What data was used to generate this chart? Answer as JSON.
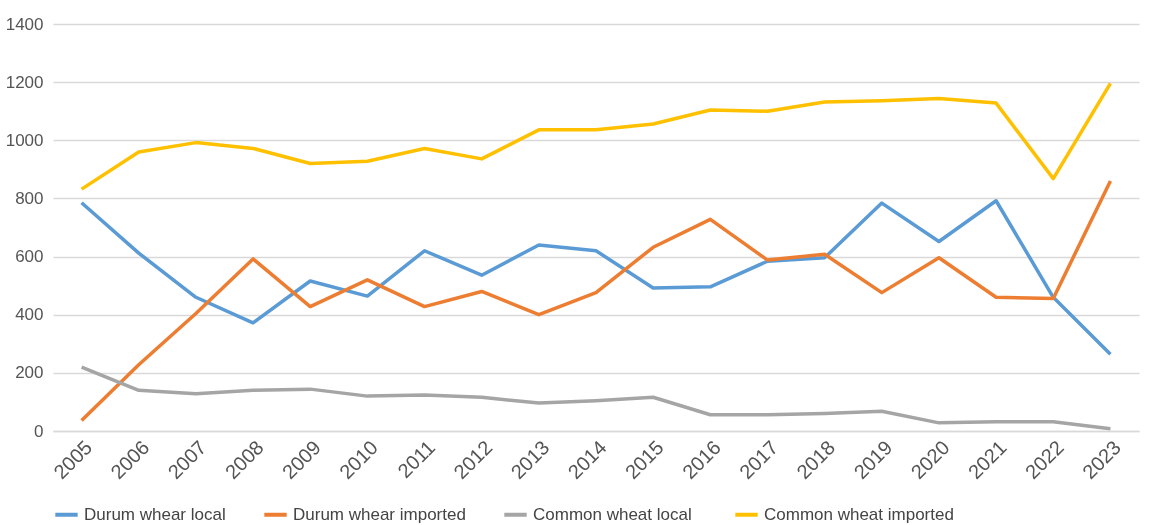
{
  "chart_data": {
    "type": "line",
    "categories": [
      "2005",
      "2006",
      "2007",
      "2008",
      "2009",
      "2010",
      "2011",
      "2012",
      "2013",
      "2014",
      "2015",
      "2016",
      "2017",
      "2018",
      "2019",
      "2020",
      "2021",
      "2022",
      "2023"
    ],
    "series": [
      {
        "name": "Durum whear local",
        "color": "#5b9bd5",
        "values": [
          785,
          612,
          460,
          372,
          516,
          464,
          620,
          536,
          640,
          620,
          492,
          496,
          584,
          596,
          784,
          652,
          792,
          460,
          264
        ]
      },
      {
        "name": "Durum whear imported",
        "color": "#ed7d31",
        "values": [
          36,
          228,
          404,
          592,
          428,
          520,
          428,
          480,
          400,
          476,
          632,
          728,
          588,
          608,
          476,
          596,
          460,
          456,
          860
        ]
      },
      {
        "name": "Common wheat  local",
        "color": "#a5a5a5",
        "values": [
          220,
          140,
          128,
          140,
          144,
          120,
          124,
          116,
          96,
          104,
          116,
          56,
          56,
          60,
          68,
          28,
          32,
          32,
          8
        ]
      },
      {
        "name": "Common wheat  imported",
        "color": "#ffc000",
        "values": [
          832,
          960,
          992,
          972,
          920,
          928,
          972,
          936,
          1036,
          1036,
          1056,
          1104,
          1100,
          1132,
          1136,
          1144,
          1128,
          868,
          1196
        ]
      }
    ],
    "ylim": [
      0,
      1400
    ],
    "yticks": [
      0,
      200,
      400,
      600,
      800,
      1000,
      1200,
      1400
    ],
    "grid": "y",
    "legend": "bottom"
  }
}
